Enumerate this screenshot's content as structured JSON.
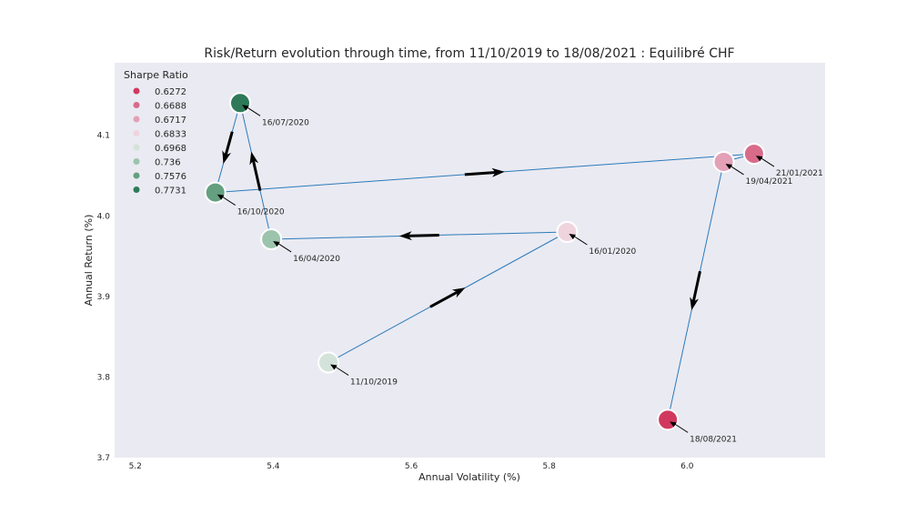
{
  "chart_data": {
    "type": "scatter",
    "title": "Risk/Return evolution through time, from 11/10/2019 to 18/08/2021 : Equilibré CHF",
    "xlabel": "Annual Volatility (%)",
    "ylabel": "Annual Return (%)",
    "xlim": [
      5.17,
      6.2
    ],
    "ylim": [
      3.7,
      4.19
    ],
    "xticks": [
      "5.2",
      "5.4",
      "5.6",
      "5.8",
      "6.0"
    ],
    "yticks": [
      "3.7",
      "3.8",
      "3.9",
      "4.0",
      "4.1"
    ],
    "legend": {
      "title": "Sharpe Ratio",
      "position": "top-left",
      "entries": [
        {
          "label": "0.6272",
          "color": "#d1385f"
        },
        {
          "label": "0.6688",
          "color": "#d96b8a"
        },
        {
          "label": "0.6717",
          "color": "#e3a0b6"
        },
        {
          "label": "0.6833",
          "color": "#efd4de"
        },
        {
          "label": "0.6968",
          "color": "#d4e3da"
        },
        {
          "label": "0.736",
          "color": "#9cc4ac"
        },
        {
          "label": "0.7576",
          "color": "#64a080"
        },
        {
          "label": "0.7731",
          "color": "#2e7a58"
        }
      ]
    },
    "points": [
      {
        "date": "11/10/2019",
        "x": 5.48,
        "y": 3.818,
        "sharpe": "0.6968",
        "color": "#d4e3da"
      },
      {
        "date": "16/01/2020",
        "x": 5.826,
        "y": 3.98,
        "sharpe": "0.6833",
        "color": "#efd4de"
      },
      {
        "date": "16/04/2020",
        "x": 5.397,
        "y": 3.971,
        "sharpe": "0.736",
        "color": "#9cc4ac"
      },
      {
        "date": "16/07/2020",
        "x": 5.352,
        "y": 4.14,
        "sharpe": "0.7731",
        "color": "#2e7a58"
      },
      {
        "date": "16/10/2020",
        "x": 5.316,
        "y": 4.029,
        "sharpe": "0.7576",
        "color": "#64a080"
      },
      {
        "date": "21/01/2021",
        "x": 6.097,
        "y": 4.077,
        "sharpe": "0.6688",
        "color": "#d96b8a"
      },
      {
        "date": "19/04/2021",
        "x": 6.053,
        "y": 4.067,
        "sharpe": "0.6717",
        "color": "#e3a0b6"
      },
      {
        "date": "18/08/2021",
        "x": 5.972,
        "y": 3.747,
        "sharpe": "0.6272",
        "color": "#d1385f"
      }
    ],
    "line_color": "#2b7bba"
  }
}
